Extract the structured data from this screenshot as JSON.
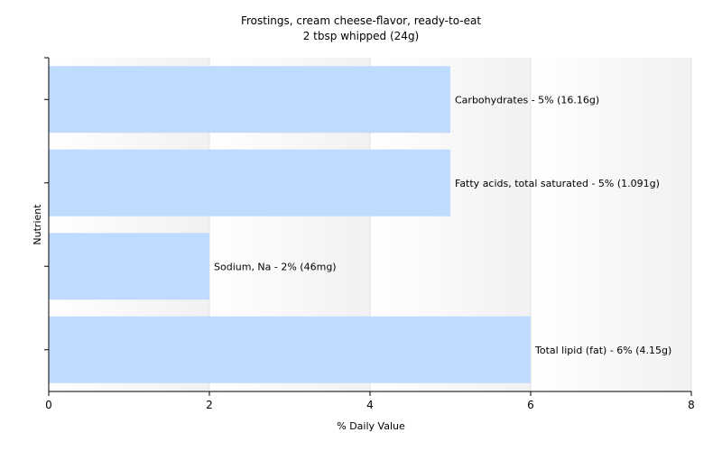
{
  "chart_data": {
    "type": "bar",
    "orientation": "horizontal",
    "title": "Frostings, cream cheese-flavor, ready-to-eat",
    "subtitle": "2 tbsp whipped (24g)",
    "xlabel": "% Daily Value",
    "ylabel": "Nutrient",
    "xlim": [
      0,
      8
    ],
    "xticks": [
      0,
      2,
      4,
      6,
      8
    ],
    "grid": true,
    "bar_color": "#bfdbff",
    "categories": [
      "Carbohydrates",
      "Fatty acids, total saturated",
      "Sodium, Na",
      "Total lipid (fat)"
    ],
    "values": [
      5,
      5,
      2,
      6
    ],
    "labels": [
      "Carbohydrates - 5% (16.16g)",
      "Fatty acids, total saturated - 5% (1.091g)",
      "Sodium, Na - 2% (46mg)",
      "Total lipid (fat) - 6% (4.15g)"
    ]
  }
}
